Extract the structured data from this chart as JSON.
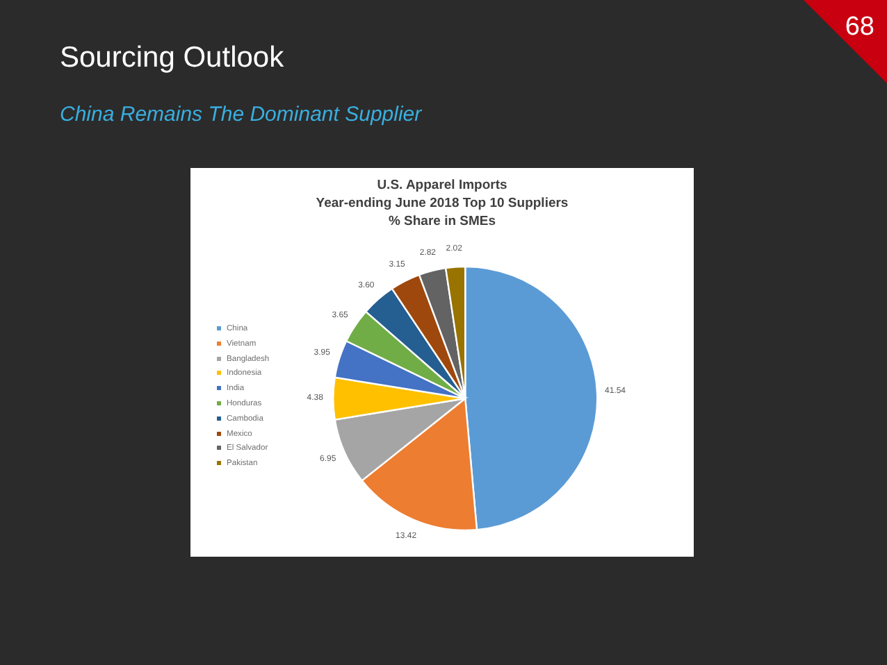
{
  "chart_data": {
    "type": "pie",
    "title": "Sourcing Outlook",
    "subtitle": "China Remains The Dominant Supplier",
    "annotations": [
      "68",
      "U.S. Apparel Imports",
      "Year-ending June 2018 Top 10 Suppliers",
      "% Share in SMEs"
    ],
    "categories": [
      "China",
      "Vietnam",
      "Bangladesh",
      "Indonesia",
      "India",
      "Honduras",
      "Cambodia",
      "Mexico",
      "El Salvador",
      "Pakistan"
    ],
    "values": [
      41.54,
      13.42,
      6.95,
      4.38,
      3.95,
      3.65,
      3.6,
      3.15,
      2.82,
      2.02
    ],
    "value_labels": [
      "41.54",
      "13.42",
      "6.95",
      "4.38",
      "3.95",
      "3.65",
      "3.60",
      "3.15",
      "2.82",
      "2.02"
    ],
    "colors": [
      "#5b9bd5",
      "#ed7d31",
      "#a5a5a5",
      "#ffc000",
      "#4472c4",
      "#70ad47",
      "#255e91",
      "#9e480e",
      "#636363",
      "#997300"
    ],
    "legend": "left"
  }
}
